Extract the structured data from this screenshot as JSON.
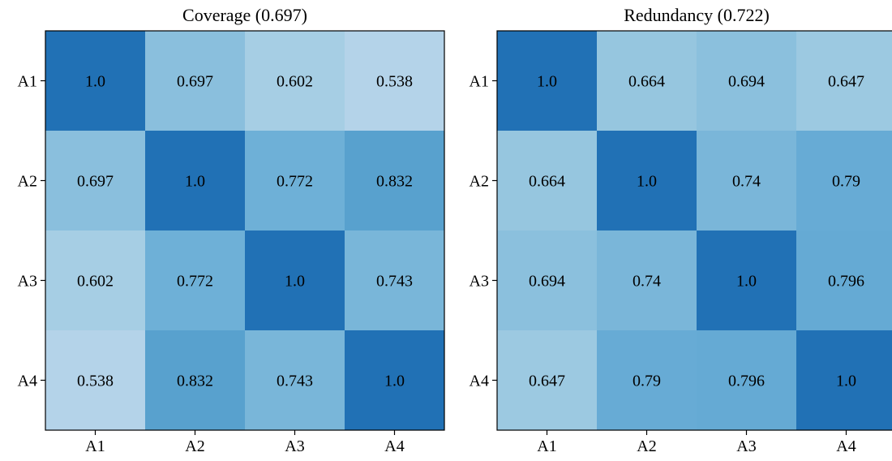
{
  "chart_data": [
    {
      "type": "heatmap",
      "title": "Coverage (0.697)",
      "x_labels": [
        "A1",
        "A2",
        "A3",
        "A4"
      ],
      "y_labels": [
        "A1",
        "A2",
        "A3",
        "A4"
      ],
      "values": [
        [
          1.0,
          0.697,
          0.602,
          0.538
        ],
        [
          0.697,
          1.0,
          0.772,
          0.832
        ],
        [
          0.602,
          0.772,
          1.0,
          0.743
        ],
        [
          0.538,
          0.832,
          0.743,
          1.0
        ]
      ],
      "cell_labels": [
        [
          "1.0",
          "0.697",
          "0.602",
          "0.538"
        ],
        [
          "0.697",
          "1.0",
          "0.772",
          "0.832"
        ],
        [
          "0.602",
          "0.772",
          "1.0",
          "0.743"
        ],
        [
          "0.538",
          "0.832",
          "0.743",
          "1.0"
        ]
      ],
      "colorscale": "Blues",
      "grid": false
    },
    {
      "type": "heatmap",
      "title": "Redundancy (0.722)",
      "x_labels": [
        "A1",
        "A2",
        "A3",
        "A4"
      ],
      "y_labels": [
        "A1",
        "A2",
        "A3",
        "A4"
      ],
      "values": [
        [
          1.0,
          0.664,
          0.694,
          0.647
        ],
        [
          0.664,
          1.0,
          0.74,
          0.79
        ],
        [
          0.694,
          0.74,
          1.0,
          0.796
        ],
        [
          0.647,
          0.79,
          0.796,
          1.0
        ]
      ],
      "cell_labels": [
        [
          "1.0",
          "0.664",
          "0.694",
          "0.647"
        ],
        [
          "0.664",
          "1.0",
          "0.74",
          "0.79"
        ],
        [
          "0.694",
          "0.74",
          "1.0",
          "0.796"
        ],
        [
          "0.647",
          "0.79",
          "0.796",
          "1.0"
        ]
      ],
      "colorscale": "Blues",
      "grid": false
    }
  ]
}
